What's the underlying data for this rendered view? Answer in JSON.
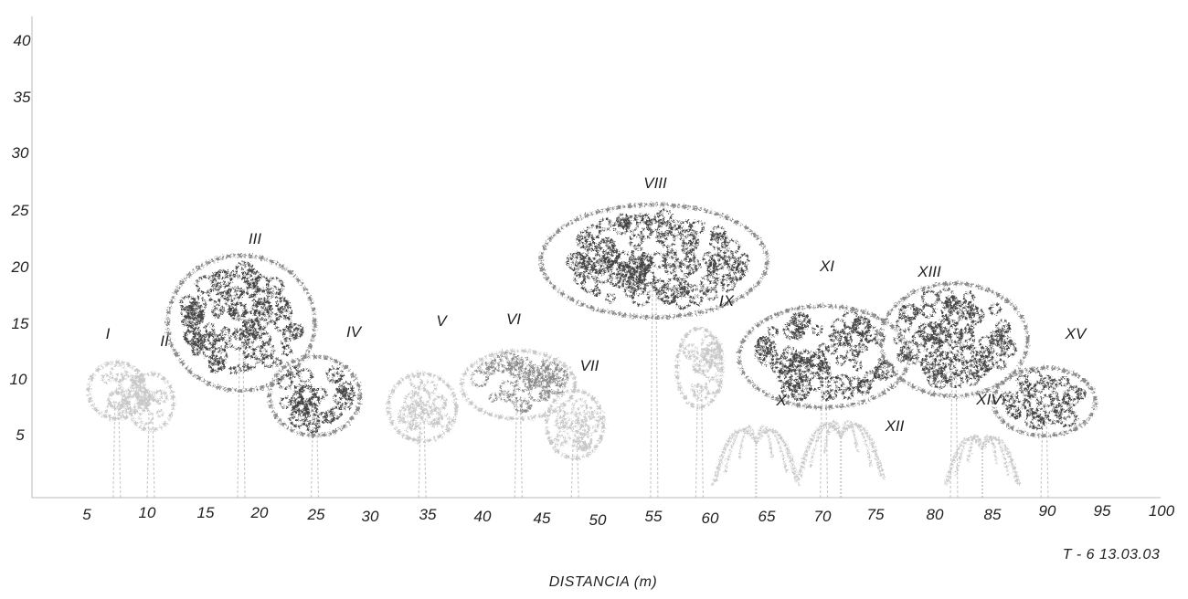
{
  "figure": {
    "x_axis_title": "DISTANCIA  (m)",
    "transect_label": "T - 6  13.03.03",
    "x_ticks": [
      "5",
      "10",
      "15",
      "20",
      "25",
      "30",
      "35",
      "40",
      "45",
      "50",
      "55",
      "60",
      "65",
      "70",
      "75",
      "80",
      "85",
      "90",
      "95",
      "100"
    ],
    "y_ticks": [
      "5",
      "10",
      "15",
      "20",
      "25",
      "30",
      "35",
      "40"
    ],
    "x_range": [
      0,
      100
    ],
    "y_range": [
      0,
      40
    ],
    "colors": {
      "dark_foliage": "#444444",
      "mid_foliage": "#8a8a8a",
      "light_foliage": "#c8c8c8",
      "axis": "#b8b8b8"
    }
  },
  "trees": [
    {
      "label": "I",
      "type": "broadleaf",
      "shade": "light",
      "x": 7.5,
      "height": 12,
      "crown_width": 5,
      "crown_height": 5
    },
    {
      "label": "II",
      "type": "broadleaf",
      "shade": "light",
      "x": 10.5,
      "height": 11,
      "crown_width": 4,
      "crown_height": 5
    },
    {
      "label": "III",
      "type": "broadleaf",
      "shade": "dark",
      "x": 18.5,
      "height": 21.5,
      "crown_width": 13,
      "crown_height": 12
    },
    {
      "label": "IV",
      "type": "broadleaf",
      "shade": "dark",
      "x": 25,
      "height": 12.5,
      "crown_width": 8,
      "crown_height": 7
    },
    {
      "label": "V",
      "type": "broadleaf",
      "shade": "light",
      "x": 34.5,
      "height": 11,
      "crown_width": 6,
      "crown_height": 6
    },
    {
      "label": "VI",
      "type": "broadleaf",
      "shade": "mid",
      "x": 43,
      "height": 13,
      "crown_width": 10,
      "crown_height": 6
    },
    {
      "label": "VII",
      "type": "broadleaf",
      "shade": "light",
      "x": 48,
      "height": 9.5,
      "crown_width": 5,
      "crown_height": 6
    },
    {
      "label": "VIII",
      "type": "broadleaf",
      "shade": "dark",
      "x": 55,
      "height": 26,
      "crown_width": 20,
      "crown_height": 10
    },
    {
      "label": "IX",
      "type": "broadleaf",
      "shade": "light",
      "x": 59,
      "height": 15,
      "crown_width": 4,
      "crown_height": 7
    },
    {
      "label": "X",
      "type": "palm",
      "shade": "light",
      "x": 64,
      "height": 8,
      "crown_width": 7,
      "crown_height": 7
    },
    {
      "label": "XI",
      "type": "broadleaf",
      "shade": "dark",
      "x": 70,
      "height": 17,
      "crown_width": 15,
      "crown_height": 9
    },
    {
      "label": "XII",
      "type": "palm",
      "shade": "light",
      "x": 71.5,
      "height": 8.5,
      "crown_width": 7,
      "crown_height": 7
    },
    {
      "label": "XIII",
      "type": "broadleaf",
      "shade": "dark",
      "x": 81.5,
      "height": 19,
      "crown_width": 13,
      "crown_height": 10
    },
    {
      "label": "XIV",
      "type": "palm",
      "shade": "light",
      "x": 84,
      "height": 7,
      "crown_width": 6,
      "crown_height": 6
    },
    {
      "label": "XV",
      "type": "broadleaf",
      "shade": "dark",
      "x": 89.5,
      "height": 11.5,
      "crown_width": 9,
      "crown_height": 6
    }
  ]
}
